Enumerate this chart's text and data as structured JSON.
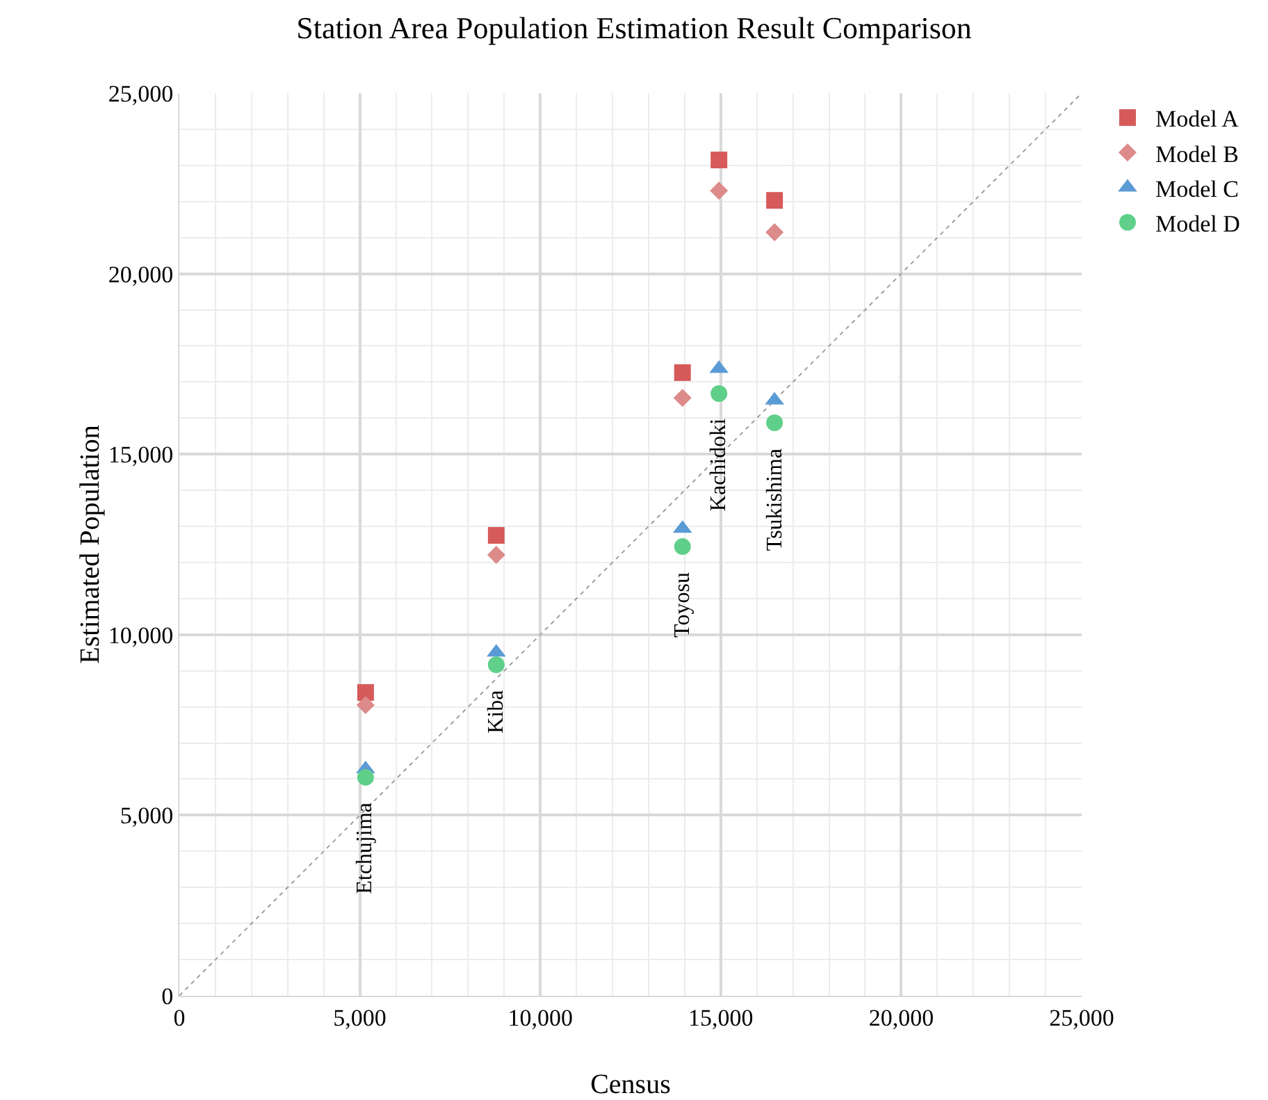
{
  "chart_data": {
    "type": "scatter",
    "title": "Station Area Population Estimation Result Comparison",
    "xlabel": "Census",
    "ylabel": "Estimated Population",
    "x": [
      5160,
      8780,
      13940,
      14950,
      16490
    ],
    "series": [
      {
        "name": "Model A",
        "color": "#d65a5a",
        "marker": "square",
        "values": [
          8400,
          12750,
          17260,
          23150,
          22030
        ]
      },
      {
        "name": "Model B",
        "color": "#dc8a8a",
        "marker": "diamond",
        "values": [
          8050,
          12210,
          16560,
          22300,
          21150
        ]
      },
      {
        "name": "Model C",
        "color": "#5b9bd5",
        "marker": "triangle",
        "values": [
          6280,
          9510,
          12940,
          17370,
          16490
        ]
      },
      {
        "name": "Model D",
        "color": "#5fcf8a",
        "marker": "circle",
        "values": [
          6050,
          9170,
          12440,
          16680,
          15870
        ]
      },
      {
        "type": "line",
        "color": "#a0a0a0",
        "line_style": "dotted",
        "x": [
          0,
          25000
        ],
        "values": [
          0,
          25000
        ]
      }
    ],
    "annotations": [
      {
        "text": "Etchujima",
        "x": 5160,
        "y": 6050
      },
      {
        "text": "Kiba",
        "x": 8780,
        "y": 9170
      },
      {
        "text": "Toyosu",
        "x": 13940,
        "y": 12440
      },
      {
        "text": "Kachidoki",
        "x": 14950,
        "y": 16680
      },
      {
        "text": "Tsukishima",
        "x": 16490,
        "y": 15870
      }
    ],
    "xlim": [
      0,
      25000
    ],
    "ylim": [
      0,
      25000
    ],
    "xticks": [
      {
        "value": 0,
        "label": "0"
      },
      {
        "value": 5000,
        "label": "5,000"
      },
      {
        "value": 10000,
        "label": "10,000"
      },
      {
        "value": 15000,
        "label": "15,000"
      },
      {
        "value": 20000,
        "label": "20,000"
      },
      {
        "value": 25000,
        "label": "25,000"
      }
    ],
    "yticks": [
      {
        "value": 0,
        "label": "0"
      },
      {
        "value": 5000,
        "label": "5,000"
      },
      {
        "value": 10000,
        "label": "10,000"
      },
      {
        "value": 15000,
        "label": "15,000"
      },
      {
        "value": 20000,
        "label": "20,000"
      },
      {
        "value": 25000,
        "label": "25,000"
      }
    ],
    "grid": true,
    "legend": "top right"
  }
}
